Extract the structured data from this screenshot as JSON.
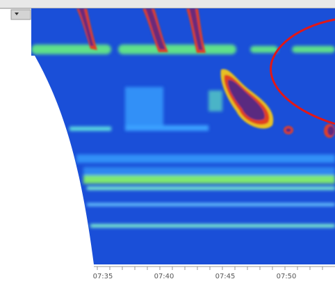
{
  "screen": {
    "time_axis": {
      "labels": [
        "07:35",
        "07:40",
        "07:45",
        "07:50"
      ]
    }
  }
}
